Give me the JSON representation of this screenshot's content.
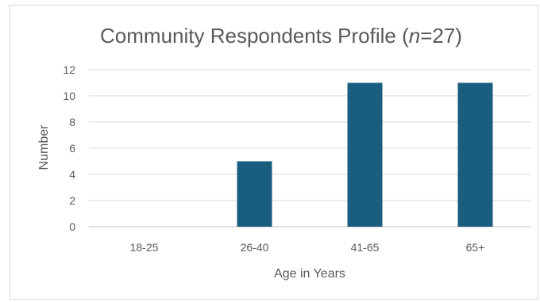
{
  "chart_data": {
    "type": "bar",
    "title_main": "Community Respondents Profile (",
    "title_n": "n",
    "title_rest": "=27)",
    "xlabel": "Age in Years",
    "ylabel": "Number",
    "categories": [
      "18-25",
      "26-40",
      "41-65",
      "65+"
    ],
    "values": [
      0,
      5,
      11,
      11
    ],
    "ylim": [
      0,
      12
    ],
    "yticks": [
      "0",
      "2",
      "4",
      "6",
      "8",
      "10",
      "12"
    ],
    "grid": true,
    "bar_color": "#195E7E"
  }
}
